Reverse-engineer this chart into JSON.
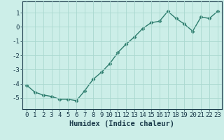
{
  "x": [
    0,
    1,
    2,
    3,
    4,
    5,
    6,
    7,
    8,
    9,
    10,
    11,
    12,
    13,
    14,
    15,
    16,
    17,
    18,
    19,
    20,
    21,
    22,
    23
  ],
  "y": [
    -4.1,
    -4.6,
    -4.8,
    -4.9,
    -5.1,
    -5.1,
    -5.2,
    -4.5,
    -3.7,
    -3.2,
    -2.6,
    -1.8,
    -1.2,
    -0.7,
    -0.1,
    0.3,
    0.4,
    1.1,
    0.6,
    0.2,
    -0.3,
    0.7,
    0.6,
    1.1
  ],
  "line_color": "#2e7d6e",
  "marker": "D",
  "marker_size": 2.5,
  "bg_color": "#cceee8",
  "grid_color": "#aad8d0",
  "xlabel": "Humidex (Indice chaleur)",
  "ylabel": "",
  "xlim": [
    -0.5,
    23.5
  ],
  "ylim": [
    -5.8,
    1.8
  ],
  "yticks": [
    -5,
    -4,
    -3,
    -2,
    -1,
    0,
    1
  ],
  "xticks": [
    0,
    1,
    2,
    3,
    4,
    5,
    6,
    7,
    8,
    9,
    10,
    11,
    12,
    13,
    14,
    15,
    16,
    17,
    18,
    19,
    20,
    21,
    22,
    23
  ],
  "font_color": "#1a3a4a",
  "linewidth": 1.0,
  "xlabel_fontsize": 7.5,
  "tick_fontsize": 6.5
}
